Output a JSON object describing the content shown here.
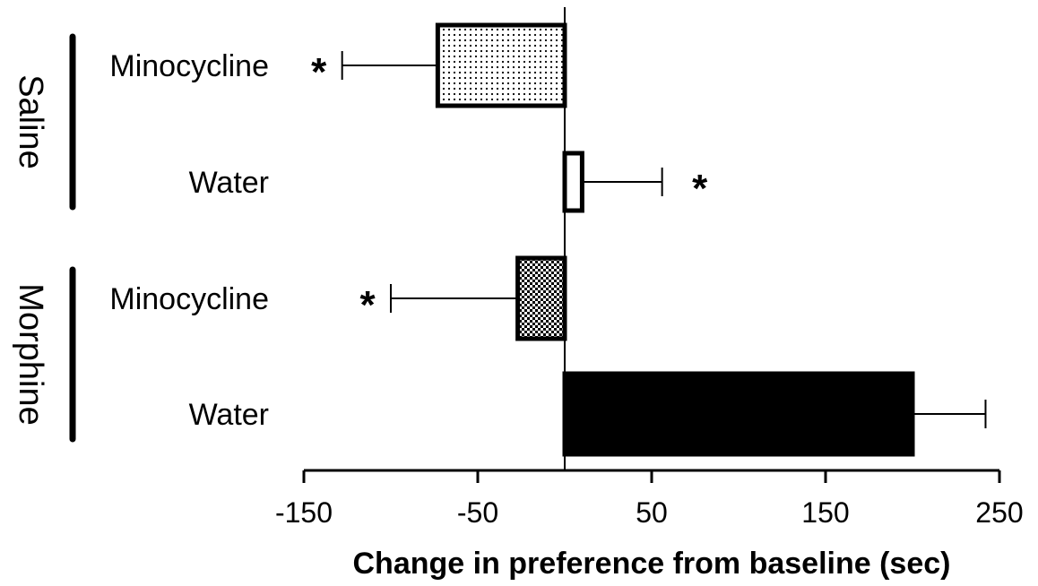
{
  "chart_data": {
    "type": "bar",
    "orientation": "horizontal",
    "xlabel": "Change in preference from baseline (sec)",
    "ylabel": "",
    "xlim": [
      -150,
      250
    ],
    "x_ticks": [
      -150,
      -50,
      50,
      150,
      250
    ],
    "x_tick_labels": [
      "-150",
      "-50",
      "50",
      "150",
      "250"
    ],
    "grid": false,
    "legend": "none",
    "groups": [
      {
        "name": "Saline",
        "bars": [
          0,
          1
        ]
      },
      {
        "name": "Morphine",
        "bars": [
          2,
          3
        ]
      }
    ],
    "bars": [
      {
        "label": "Minocycline",
        "group": "Saline",
        "value": -73,
        "error": 55,
        "significant": true,
        "sig_label": "*",
        "fill": "fine-dots"
      },
      {
        "label": "Water",
        "group": "Saline",
        "value": 10,
        "error": 46,
        "significant": true,
        "sig_label": "*",
        "fill": "white"
      },
      {
        "label": "Minocycline",
        "group": "Morphine",
        "value": -27,
        "error": 73,
        "significant": true,
        "sig_label": "*",
        "fill": "checker"
      },
      {
        "label": "Water",
        "group": "Morphine",
        "value": 200,
        "error": 42,
        "significant": false,
        "sig_label": "",
        "fill": "solid-black"
      }
    ]
  }
}
